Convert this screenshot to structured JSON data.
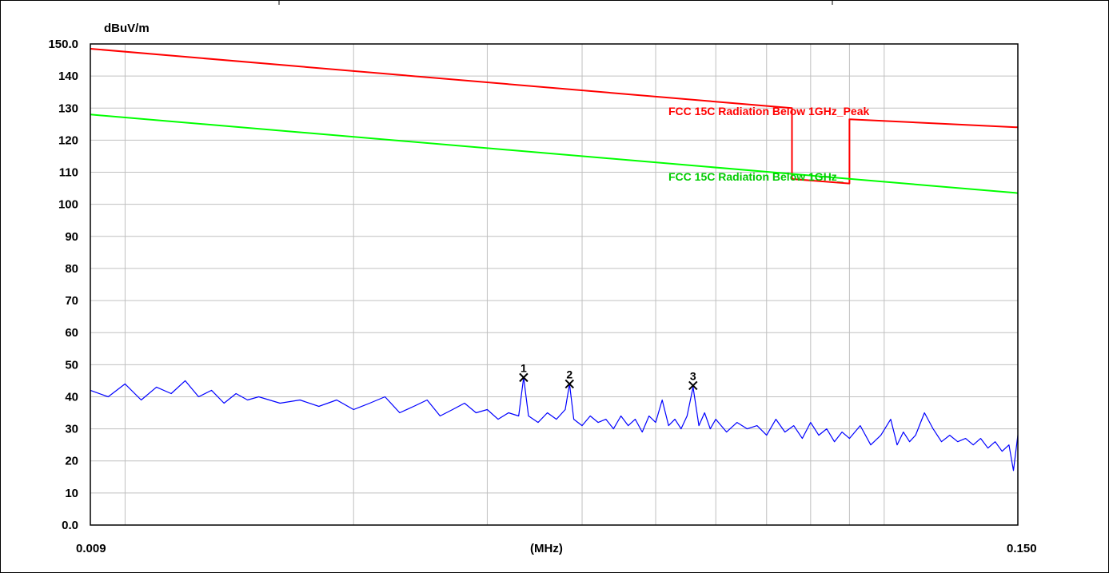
{
  "chart_data": {
    "type": "line",
    "y_unit": "dBuV/m",
    "x_unit": "(MHz)",
    "x_scale": "log",
    "xlim": [
      0.009,
      0.15
    ],
    "ylim": [
      0,
      150
    ],
    "x_tick_labels": [
      "0.009",
      "(MHz)",
      "0.150"
    ],
    "y_tick_labels": [
      "150.0",
      "140",
      "130",
      "120",
      "110",
      "100",
      "90",
      "80",
      "70",
      "60",
      "50",
      "40",
      "30",
      "20",
      "10",
      "0.0"
    ],
    "grid": true,
    "colors": {
      "peak_limit": "#ff0000",
      "avg_limit": "#00ff00",
      "trace": "#0000ff",
      "grid": "#c0c0c0",
      "marker": "#000000"
    },
    "series": [
      {
        "name": "FCC 15C Radiation Below 1GHz_Peak",
        "color": "#ff0000",
        "x": [
          0.009,
          0.0756,
          0.0756,
          0.09,
          0.09,
          0.15
        ],
        "y": [
          148.5,
          130.0,
          107.9,
          106.5,
          126.5,
          124.0
        ]
      },
      {
        "name": "FCC 15C Radiation Below 1GHz_",
        "color": "#00ff00",
        "x": [
          0.009,
          0.15
        ],
        "y": [
          128.0,
          103.5
        ]
      },
      {
        "name": "",
        "color": "#0000ff",
        "x": [
          0.009,
          0.0095,
          0.01,
          0.0105,
          0.011,
          0.0115,
          0.012,
          0.0125,
          0.013,
          0.0135,
          0.014,
          0.0145,
          0.015,
          0.016,
          0.017,
          0.018,
          0.019,
          0.02,
          0.021,
          0.022,
          0.023,
          0.024,
          0.025,
          0.026,
          0.027,
          0.028,
          0.029,
          0.03,
          0.031,
          0.032,
          0.033,
          0.0335,
          0.034,
          0.035,
          0.036,
          0.037,
          0.038,
          0.0385,
          0.039,
          0.04,
          0.041,
          0.042,
          0.043,
          0.044,
          0.045,
          0.046,
          0.047,
          0.048,
          0.049,
          0.05,
          0.051,
          0.052,
          0.053,
          0.054,
          0.055,
          0.056,
          0.057,
          0.058,
          0.059,
          0.06,
          0.062,
          0.064,
          0.066,
          0.068,
          0.07,
          0.072,
          0.074,
          0.076,
          0.078,
          0.08,
          0.082,
          0.084,
          0.086,
          0.088,
          0.09,
          0.093,
          0.096,
          0.099,
          0.102,
          0.104,
          0.106,
          0.108,
          0.11,
          0.113,
          0.116,
          0.119,
          0.122,
          0.125,
          0.128,
          0.131,
          0.134,
          0.137,
          0.14,
          0.143,
          0.146,
          0.148,
          0.15
        ],
        "y": [
          42,
          40,
          44,
          39,
          43,
          41,
          45,
          40,
          42,
          38,
          41,
          39,
          40,
          38,
          39,
          37,
          39,
          36,
          38,
          40,
          35,
          37,
          39,
          34,
          36,
          38,
          35,
          36,
          33,
          35,
          34,
          46,
          34,
          32,
          35,
          33,
          36,
          44,
          33,
          31,
          34,
          32,
          33,
          30,
          34,
          31,
          33,
          29,
          34,
          32,
          39,
          31,
          33,
          30,
          34,
          43,
          31,
          35,
          30,
          33,
          29,
          32,
          30,
          31,
          28,
          33,
          29,
          31,
          27,
          32,
          28,
          30,
          26,
          29,
          27,
          31,
          25,
          28,
          33,
          25,
          29,
          26,
          28,
          35,
          30,
          26,
          28,
          26,
          27,
          25,
          27,
          24,
          26,
          23,
          25,
          17,
          28
        ]
      }
    ],
    "markers": [
      {
        "label": "1",
        "x": 0.0335,
        "y": 46.0
      },
      {
        "label": "2",
        "x": 0.0385,
        "y": 44.0
      },
      {
        "label": "3",
        "x": 0.056,
        "y": 43.5
      }
    ],
    "limit_labels": [
      {
        "text": "FCC  15C Radiation Below 1GHz_Peak",
        "color": "#ff0000"
      },
      {
        "text": "FCC  15C Radiation Below 1GHz_",
        "color": "#00ff00"
      }
    ]
  }
}
